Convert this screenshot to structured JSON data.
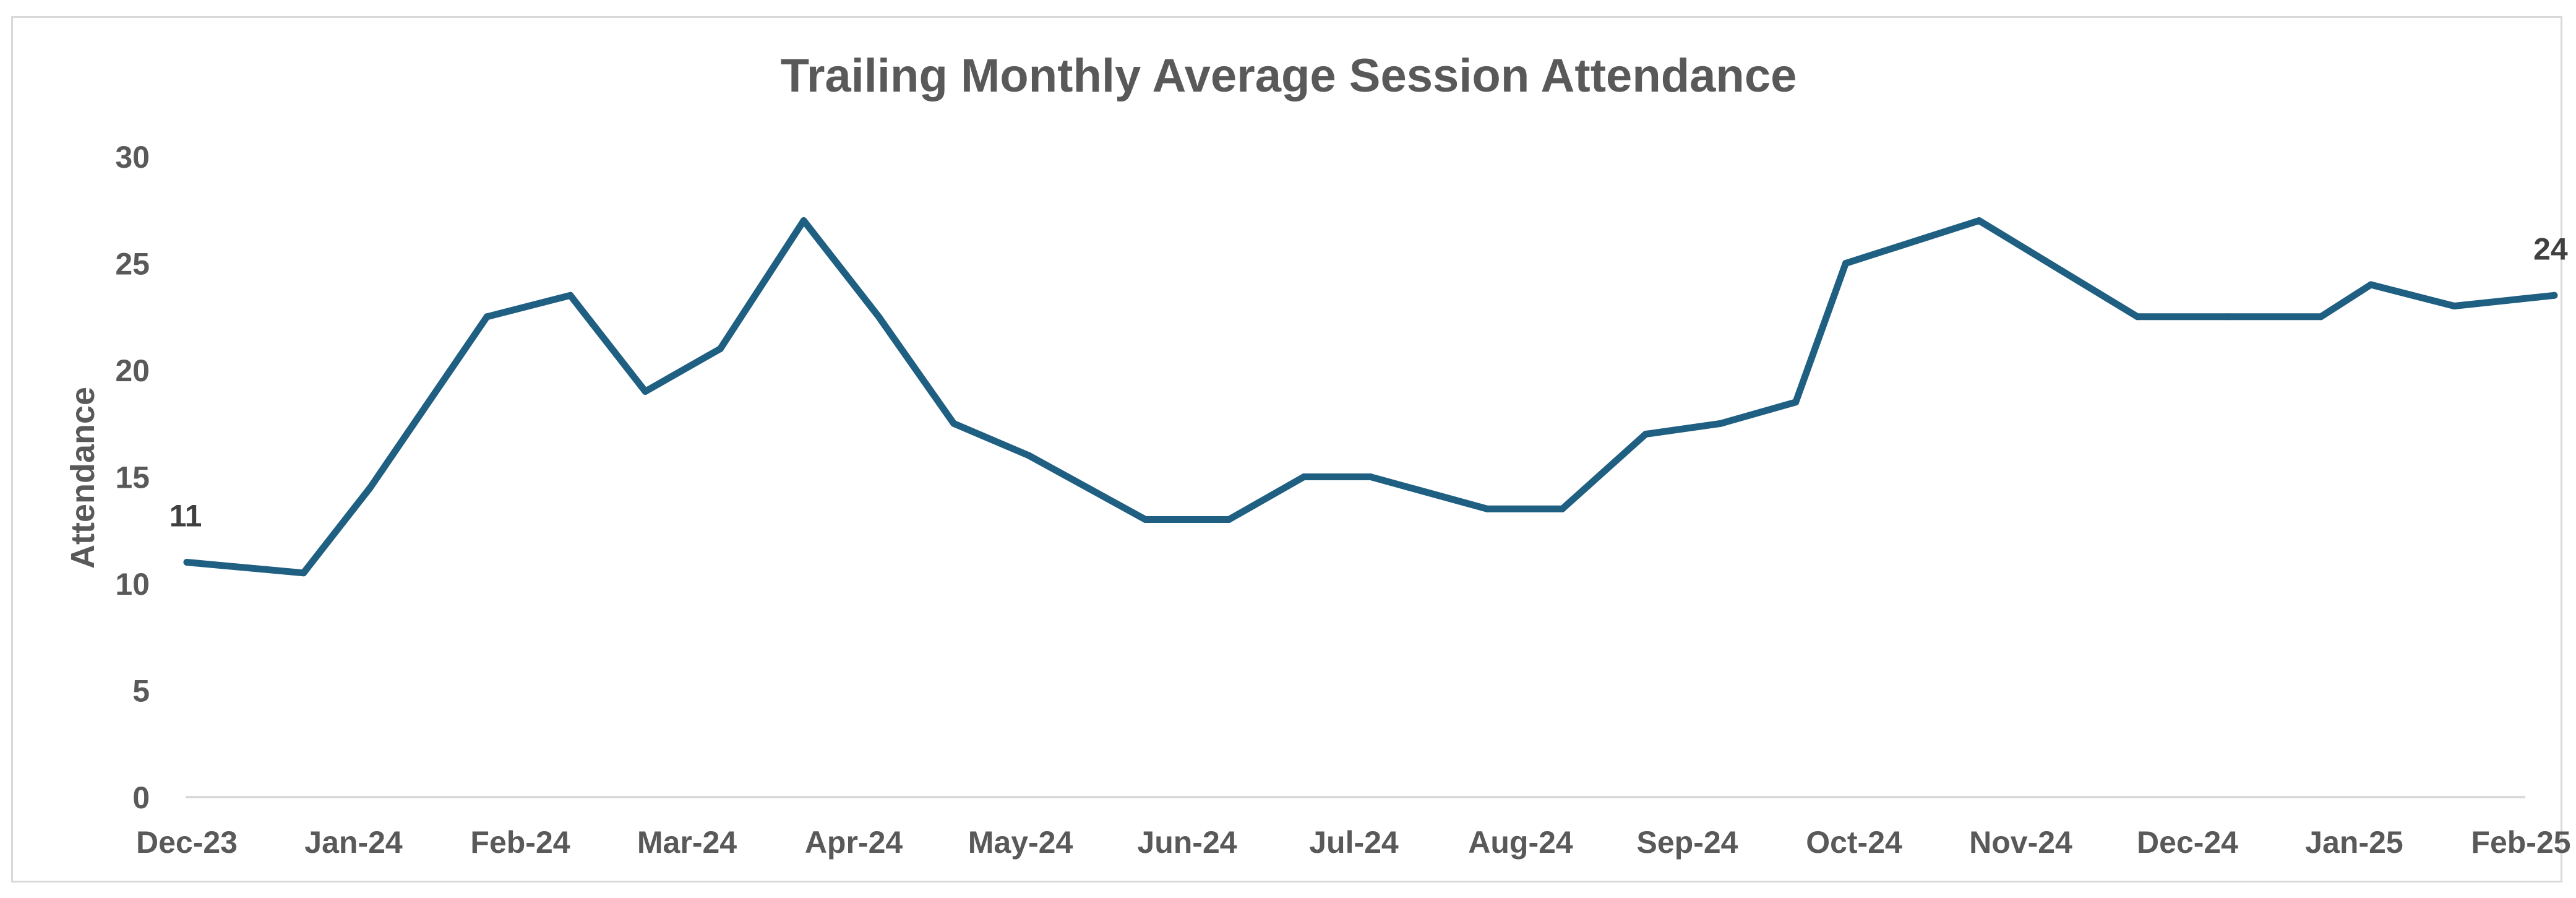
{
  "chart_data": {
    "type": "line",
    "title": "Trailing Monthly Average Session Attendance",
    "xlabel": "",
    "ylabel": "Attendance",
    "ylim": [
      0,
      30
    ],
    "yticks": [
      0,
      5,
      10,
      15,
      20,
      25,
      30
    ],
    "tick_labels": [
      "Dec-23",
      "Jan-24",
      "Feb-24",
      "Mar-24",
      "Apr-24",
      "May-24",
      "Jun-24",
      "Jul-24",
      "Aug-24",
      "Sep-24",
      "Oct-24",
      "Nov-24",
      "Dec-24",
      "Jan-25",
      "Feb-25"
    ],
    "grid": false,
    "legend": "none",
    "line_color": "#1f5f82",
    "series": [
      {
        "name": "Attendance",
        "x": [
          0,
          0.7,
          1.1,
          1.8,
          2.3,
          2.75,
          3.2,
          3.7,
          4.15,
          4.6,
          5.05,
          5.75,
          6.25,
          6.7,
          7.1,
          7.8,
          8.25,
          8.75,
          9.2,
          9.65,
          9.95,
          10.75,
          11.7,
          12.25,
          12.8,
          13.1,
          13.6,
          14.2
        ],
        "values": [
          11,
          10.5,
          14.5,
          22.5,
          23.5,
          19,
          21,
          27,
          22.5,
          17.5,
          16,
          13,
          13,
          15,
          15,
          13.5,
          13.5,
          17,
          17.5,
          18.5,
          25,
          27,
          22.5,
          22.5,
          22.5,
          24,
          23,
          23.5
        ]
      }
    ],
    "data_labels": [
      {
        "label": "11",
        "point_index": 0
      },
      {
        "label": "24",
        "point_index": 27
      }
    ]
  }
}
